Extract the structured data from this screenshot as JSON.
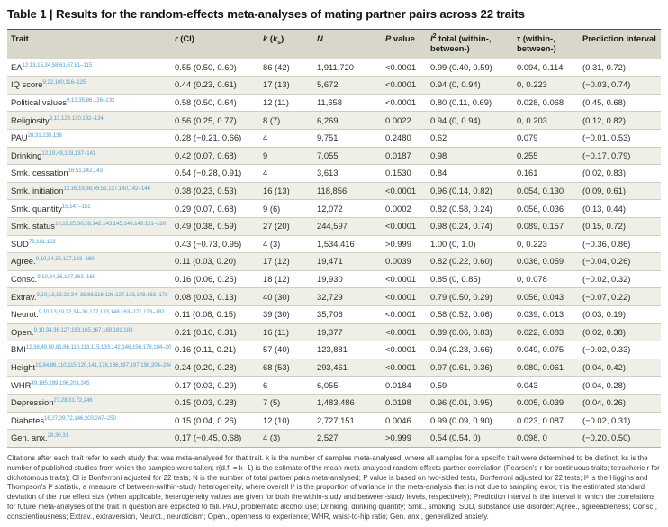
{
  "title": "Table 1 | Results for the random-effects meta-analyses of mating partner pairs across 22 traits",
  "table": {
    "columns": [
      {
        "key": "trait",
        "label": [
          [
            "Trait",
            ""
          ]
        ]
      },
      {
        "key": "r_ci",
        "label": [
          [
            "r",
            "i"
          ],
          [
            " (CI)",
            ""
          ]
        ]
      },
      {
        "key": "k",
        "label": [
          [
            "k",
            "i"
          ],
          [
            " (",
            ""
          ],
          [
            "k",
            "i"
          ],
          [
            "s",
            "sub"
          ],
          [
            ")",
            ""
          ]
        ]
      },
      {
        "key": "n",
        "label": [
          [
            "N",
            "i"
          ]
        ]
      },
      {
        "key": "p",
        "label": [
          [
            "P",
            "i"
          ],
          [
            " value",
            ""
          ]
        ]
      },
      {
        "key": "i2",
        "label": [
          [
            "I",
            "i"
          ],
          [
            "2",
            "sup"
          ],
          [
            " total (within-, between-)",
            ""
          ]
        ]
      },
      {
        "key": "tau",
        "label": [
          [
            "τ (within-, between-)",
            ""
          ]
        ]
      },
      {
        "key": "pi",
        "label": [
          [
            "Prediction interval",
            ""
          ]
        ]
      }
    ],
    "rows": [
      {
        "trait": "EA",
        "refs": "12,13,15,34,58,61,67,81–115",
        "r_ci": "0.55 (0.50, 0.60)",
        "k": "86 (42)",
        "n": "1,911,720",
        "p": "<0.0001",
        "i2": "0.99 (0.40, 0.59)",
        "tau": "0.094, 0.114",
        "pi": "(0.31, 0.72)"
      },
      {
        "trait": "IQ score",
        "refs": "9,22,100,116–125",
        "r_ci": "0.44 (0.23, 0.61)",
        "k": "17 (13)",
        "n": "5,672",
        "p": "<0.0001",
        "i2": "0.94 (0, 0.94)",
        "tau": "0, 0.223",
        "pi": "(−0.03, 0.74)"
      },
      {
        "trait": "Political values",
        "refs": "9,13,35,86,126–132",
        "r_ci": "0.58 (0.50, 0.64)",
        "k": "12 (11)",
        "n": "11,658",
        "p": "<0.0001",
        "i2": "0.80 (0.11, 0.69)",
        "tau": "0.028, 0.068",
        "pi": "(0.45, 0.68)"
      },
      {
        "trait": "Religiosity",
        "refs": "9,13,126,130,132–134",
        "r_ci": "0.56 (0.25, 0.77)",
        "k": "8 (7)",
        "n": "6,269",
        "p": "0.0022",
        "i2": "0.94 (0, 0.94)",
        "tau": "0, 0.203",
        "pi": "(0.12, 0.82)"
      },
      {
        "trait": "PAU",
        "refs": "28,31,135,136",
        "r_ci": "0.28 (−0.21, 0.66)",
        "k": "4",
        "n": "9,751",
        "p": "0.2480",
        "i2": "0.62",
        "tau": "0.079",
        "pi": "(−0.01, 0.53)"
      },
      {
        "trait": "Drinking",
        "refs": "12,19,49,103,137–141",
        "r_ci": "0.42 (0.07, 0.68)",
        "k": "9",
        "n": "7,055",
        "p": "0.0187",
        "i2": "0.98",
        "tau": "0.255",
        "pi": "(−0.17, 0.79)"
      },
      {
        "trait": "Smk. cessation",
        "refs": "16,51,142,143",
        "r_ci": "0.54 (−0.28, 0.91)",
        "k": "4",
        "n": "3,613",
        "p": "0.1530",
        "i2": "0.84",
        "tau": "0.161",
        "pi": "(0.02, 0.83)"
      },
      {
        "trait": "Smk. initiation",
        "refs": "12,16,19,38,49,51,137,140,142–146",
        "r_ci": "0.38 (0.23, 0.53)",
        "k": "16 (13)",
        "n": "118,856",
        "p": "<0.0001",
        "i2": "0.96 (0.14, 0.82)",
        "tau": "0.054, 0.130",
        "pi": "(0.09, 0.61)"
      },
      {
        "trait": "Smk. quantity",
        "refs": "15,147–151",
        "r_ci": "0.29 (0.07, 0.68)",
        "k": "9 (6)",
        "n": "12,072",
        "p": "0.0002",
        "i2": "0.82 (0.58, 0.24)",
        "tau": "0.056, 0.036",
        "pi": "(0.13, 0.44)"
      },
      {
        "trait": "Smk. status",
        "refs": "16,19,25,38,58,142,143,145,146,149,151–160",
        "r_ci": "0.49 (0.38, 0.59)",
        "k": "27 (20)",
        "n": "244,597",
        "p": "<0.0001",
        "i2": "0.98 (0.24, 0.74)",
        "tau": "0.089, 0.157",
        "pi": "(0.15, 0.72)"
      },
      {
        "trait": "SUD",
        "refs": "72,161,162",
        "r_ci": "0.43 (−0.73, 0.95)",
        "k": "4 (3)",
        "n": "1,534,416",
        "p": ">0.999",
        "i2": "1.00 (0, 1.0)",
        "tau": "0, 0.223",
        "pi": "(−0.36, 0.86)"
      },
      {
        "trait": "Agree.",
        "refs": "9,10,34,36,127,163–169",
        "r_ci": "0.11 (0.03, 0.20)",
        "k": "17 (12)",
        "n": "19,471",
        "p": "0.0039",
        "i2": "0.82 (0.22, 0.60)",
        "tau": "0.036, 0.059",
        "pi": "(−0.04, 0.26)"
      },
      {
        "trait": "Consc.",
        "refs": "9,10,34,36,127,163–169",
        "r_ci": "0.16 (0.06, 0.25)",
        "k": "18 (12)",
        "n": "19,930",
        "p": "<0.0001",
        "i2": "0.85 (0, 0.85)",
        "tau": "0, 0.078",
        "pi": "(−0.02, 0.32)"
      },
      {
        "trait": "Extrav.",
        "refs": "9,10,13,19,22,34–36,86,116,126,127,133,148,163–178",
        "r_ci": "0.08 (0.03, 0.13)",
        "k": "40 (30)",
        "n": "32,729",
        "p": "<0.0001",
        "i2": "0.79 (0.50, 0.29)",
        "tau": "0.056, 0.043",
        "pi": "(−0.07, 0.22)"
      },
      {
        "trait": "Neurot.",
        "refs": "9,10,13,19,22,34–36,127,133,148,163–171,173–182",
        "r_ci": "0.11 (0.08, 0.15)",
        "k": "39 (30)",
        "n": "35,706",
        "p": "<0.0001",
        "i2": "0.58 (0.52, 0.06)",
        "tau": "0.039, 0.013",
        "pi": "(0.03, 0.19)"
      },
      {
        "trait": "Open.",
        "refs": "9,10,34,36,127,163,165,167,169,181,183",
        "r_ci": "0.21 (0.10, 0.31)",
        "k": "16 (11)",
        "n": "19,377",
        "p": "<0.0001",
        "i2": "0.89 (0.06, 0.83)",
        "tau": "0.022, 0.083",
        "pi": "(0.02, 0.38)"
      },
      {
        "trait": "BMI",
        "refs": "12,38,49,50,81,86,110,113,115,133,142,146,156,178,184–209",
        "r_ci": "0.16 (0.11, 0.21)",
        "k": "57 (40)",
        "n": "123,881",
        "p": "<0.0001",
        "i2": "0.94 (0.28, 0.66)",
        "tau": "0.049, 0.075",
        "pi": "(−0.02, 0.33)"
      },
      {
        "trait": "Height",
        "refs": "19,84,86,110,115,120,141,178,186,187,197,198,204–244",
        "r_ci": "0.24 (0.20, 0.28)",
        "k": "68 (53)",
        "n": "293,461",
        "p": "<0.0001",
        "i2": "0.97 (0.61, 0.36)",
        "tau": "0.080, 0.061",
        "pi": "(0.04, 0.42)"
      },
      {
        "trait": "WHR",
        "refs": "49,185,189,196,203,245",
        "r_ci": "0.17 (0.03, 0.29)",
        "k": "6",
        "n": "6,055",
        "p": "0.0184",
        "i2": "0.59",
        "tau": "0.043",
        "pi": "(0.04, 0.28)"
      },
      {
        "trait": "Depression",
        "refs": "27,28,31,72,246",
        "r_ci": "0.15 (0.03, 0.28)",
        "k": "7 (5)",
        "n": "1,483,486",
        "p": "0.0198",
        "i2": "0.96 (0.01, 0.95)",
        "tau": "0.005, 0.039",
        "pi": "(0.04, 0.26)"
      },
      {
        "trait": "Diabetes",
        "refs": "16,27,39,72,146,203,247–250",
        "r_ci": "0.15 (0.04, 0.26)",
        "k": "12 (10)",
        "n": "2,727,151",
        "p": "0.0046",
        "i2": "0.99 (0.09, 0.90)",
        "tau": "0.023, 0.087",
        "pi": "(−0.02, 0.31)"
      },
      {
        "trait": "Gen. anx.",
        "refs": "28,30,31",
        "r_ci": "0.17 (−0.45, 0.68)",
        "k": "4 (3)",
        "n": "2,527",
        "p": ">0.999",
        "i2": "0.54 (0.54, 0)",
        "tau": "0.098, 0",
        "pi": "(−0.20, 0.50)"
      }
    ]
  },
  "caption": "Citations after each trait refer to each study that was meta-analysed for that trait. k is the number of samples meta-analysed, where all samples for a specific trait were determined to be distinct; ks is the number of published studies from which the samples were taken; r(d.f. = k−1) is the estimate of the mean meta-analysed random-effects partner correlation (Pearson's r for continuous traits; tetrachoric r for dichotomous traits); CI is Bonferroni adjusted for 22 tests; N is the number of total partner pairs meta-analysed; P value is based on two-sided tests, Bonferroni adjusted for 22 tests; I² is the Higgins and Thompson's I² statistic, a measure of between-/within-study heterogeneity, where overall I² is the proportion of variance in the meta-analysis that is not due to sampling error; τ is the estimated standard deviation of the true effect size (when applicable, heterogeneity values are given for both the within-study and between-study levels, respectively); Prediction interval is the interval in which the correlations for future meta-analyses of the trait in question are expected to fall. PAU, problematic alcohol use; Drinking, drinking quantity; Smk., smoking; SUD, substance use disorder; Agree., agreeableness; Consc., conscientiousness; Extrav., extraversion, Neurot., neuroticism; Open., openness to experience; WHR, waist-to-hip ratio; Gen. anx., generalized anxiety."
}
